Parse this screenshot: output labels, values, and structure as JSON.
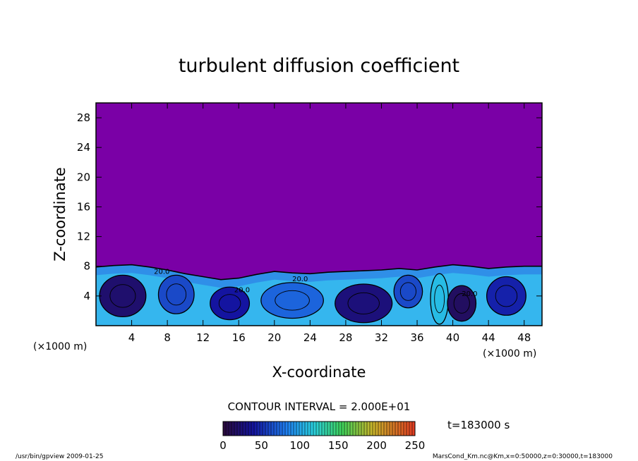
{
  "chart_data": {
    "type": "heatmap",
    "title": "turbulent diffusion coefficient",
    "xlabel": "X-coordinate",
    "ylabel": "Z-coordinate",
    "x_unit": "(×1000 m)",
    "y_unit": "(×1000 m)",
    "xlim": [
      0,
      50
    ],
    "ylim": [
      0,
      30
    ],
    "x_ticks": [
      4,
      8,
      12,
      16,
      20,
      24,
      28,
      32,
      36,
      40,
      44,
      48
    ],
    "y_ticks": [
      4,
      8,
      12,
      16,
      20,
      24,
      28
    ],
    "contour_interval": "CONTOUR INTERVAL = 2.000E+01",
    "contour_labels": [
      "20.0",
      "20.0",
      "20.0",
      "20.0"
    ],
    "colorbar": {
      "min": 0,
      "max": 250,
      "ticks": [
        0,
        50,
        100,
        150,
        200,
        250
      ]
    },
    "time_label": "t=183000 s",
    "background_value": 0,
    "boundary_layer_top": [
      [
        0,
        7.9
      ],
      [
        2,
        8.1
      ],
      [
        4,
        8.2
      ],
      [
        6,
        7.9
      ],
      [
        8,
        7.5
      ],
      [
        10,
        7.0
      ],
      [
        12,
        6.6
      ],
      [
        14,
        6.2
      ],
      [
        16,
        6.4
      ],
      [
        18,
        6.9
      ],
      [
        20,
        7.3
      ],
      [
        22,
        7.1
      ],
      [
        24,
        7.0
      ],
      [
        26,
        7.2
      ],
      [
        28,
        7.3
      ],
      [
        30,
        7.4
      ],
      [
        32,
        7.5
      ],
      [
        34,
        7.7
      ],
      [
        36,
        7.5
      ],
      [
        38,
        7.9
      ],
      [
        40,
        8.2
      ],
      [
        42,
        8.0
      ],
      [
        44,
        7.7
      ],
      [
        46,
        7.9
      ],
      [
        48,
        8.0
      ],
      [
        50,
        8.0
      ]
    ],
    "cells": [
      {
        "x": 3,
        "z": 4.0,
        "rx": 2.6,
        "rz": 2.8,
        "value": 20
      },
      {
        "x": 9,
        "z": 4.2,
        "rx": 2.0,
        "rz": 2.6,
        "value": 60
      },
      {
        "x": 15,
        "z": 3.0,
        "rx": 2.2,
        "rz": 2.2,
        "value": 40
      },
      {
        "x": 22,
        "z": 3.4,
        "rx": 3.5,
        "rz": 2.4,
        "value": 70
      },
      {
        "x": 30,
        "z": 3.0,
        "rx": 3.2,
        "rz": 2.6,
        "value": 25
      },
      {
        "x": 35,
        "z": 4.6,
        "rx": 1.6,
        "rz": 2.2,
        "value": 60
      },
      {
        "x": 38.5,
        "z": 3.6,
        "rx": 1.0,
        "rz": 3.4,
        "value": 110
      },
      {
        "x": 41,
        "z": 3.0,
        "rx": 1.6,
        "rz": 2.4,
        "value": 15
      },
      {
        "x": 46,
        "z": 4.0,
        "rx": 2.2,
        "rz": 2.6,
        "value": 45
      }
    ]
  },
  "footer": {
    "left": "/usr/bin/gpview   2009-01-25",
    "right": "MarsCond_Km.nc@Km,x=0:50000,z=0:30000,t=183000"
  }
}
